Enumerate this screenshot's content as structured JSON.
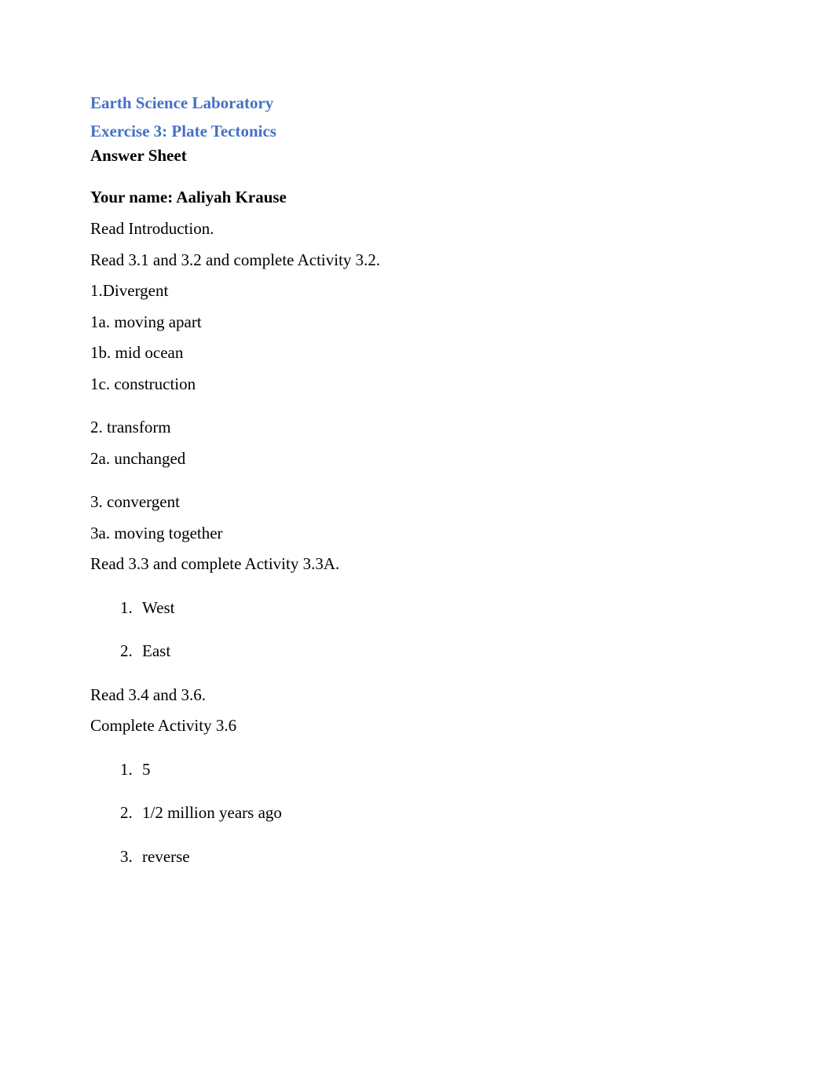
{
  "header": {
    "line1": "Earth Science Laboratory",
    "line2": "Exercise 3: Plate Tectonics",
    "answer_sheet": "Answer Sheet"
  },
  "name_line": "Your name: Aaliyah Krause",
  "intro_lines": [
    "Read Introduction.",
    "Read 3.1 and 3.2 and complete Activity 3.2."
  ],
  "section1": {
    "q1": "1.Divergent",
    "q1a": "1a. moving apart",
    "q1b": "1b. mid ocean",
    "q1c": "1c. construction"
  },
  "section2": {
    "q2": "2. transform",
    "q2a": "2a. unchanged"
  },
  "section3": {
    "q3": "3. convergent",
    "q3a": "3a. moving together",
    "read": "Read 3.3 and complete Activity 3.3A."
  },
  "list_33a": [
    {
      "num": "1.",
      "text": "West"
    },
    {
      "num": "2.",
      "text": "East"
    }
  ],
  "section4": {
    "read1": "Read 3.4 and 3.6.",
    "read2": "Complete Activity 3.6"
  },
  "list_36": [
    {
      "num": "1.",
      "text": "5"
    },
    {
      "num": "2.",
      "text": "1/2 million years ago"
    },
    {
      "num": "3.",
      "text": "reverse"
    }
  ],
  "colors": {
    "heading_blue": "#4471c4",
    "text_black": "#000000",
    "background": "#ffffff"
  },
  "typography": {
    "font_family": "Times New Roman",
    "body_fontsize": 21,
    "heading_fontsize": 21,
    "heading_weight": "bold"
  }
}
